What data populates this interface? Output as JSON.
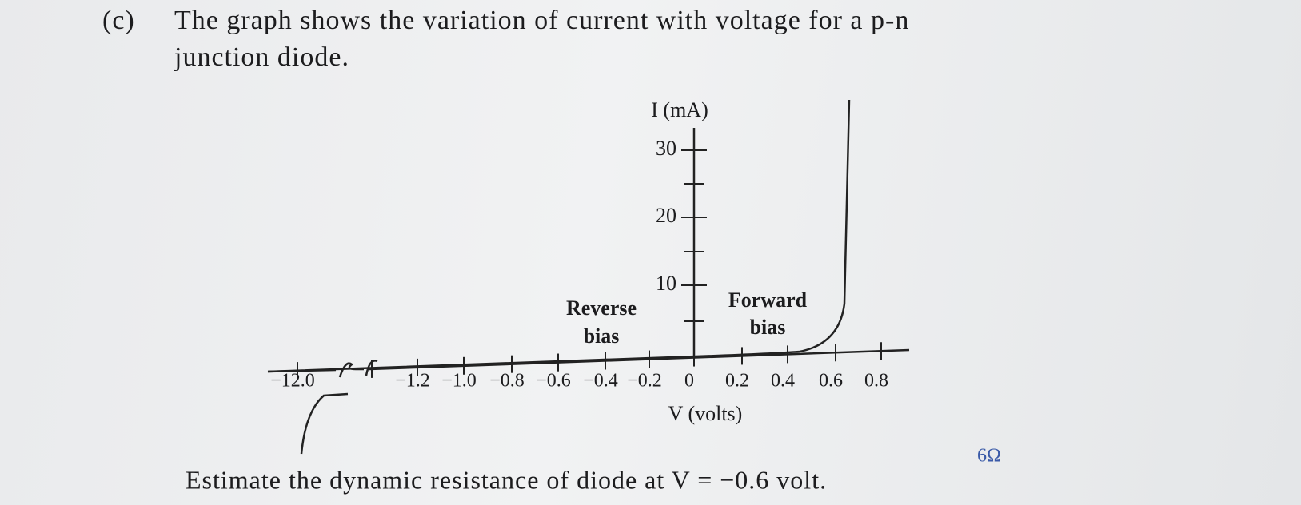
{
  "question": {
    "label": "(c)",
    "line1": "The graph shows the variation of current with voltage for a p-n",
    "line2": "junction diode."
  },
  "graph": {
    "y_axis_label": "I (mA)",
    "y_ticks": [
      "30",
      "20",
      "10"
    ],
    "x_axis_label": "V (volts)",
    "x_ticks": [
      "−12.0",
      "−1.2",
      "−1.0",
      "−0.8",
      "−0.6",
      "−0.4",
      "−0.2",
      "0",
      "0.2",
      "0.4",
      "0.6",
      "0.8"
    ],
    "reverse_label": [
      "Reverse",
      "bias"
    ],
    "forward_label": [
      "Forward",
      "bias"
    ]
  },
  "prompt": "Estimate the dynamic resistance of diode at V = −0.6 volt.",
  "handwriting": "6Ω"
}
